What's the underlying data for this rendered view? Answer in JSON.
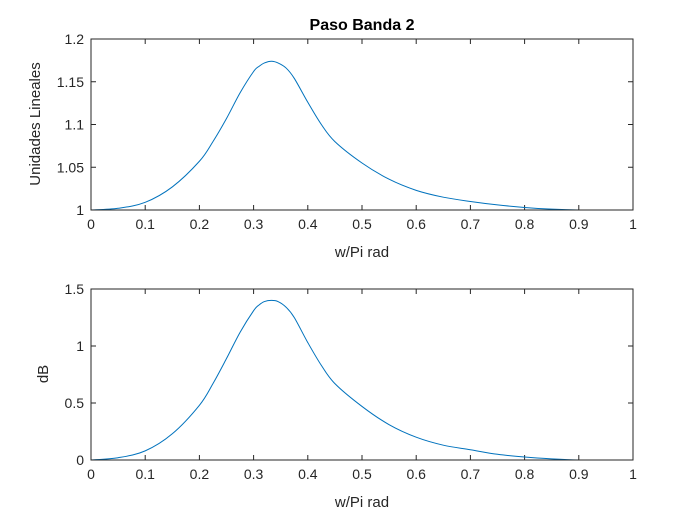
{
  "colors": {
    "series": "#0072BD",
    "axes": "#262626",
    "background": "#ffffff"
  },
  "chart_data": [
    {
      "type": "line",
      "title": "Paso Banda 2",
      "xlabel": "w/Pi rad",
      "ylabel": "Unidades Lineales",
      "xlim": [
        0,
        1
      ],
      "ylim": [
        1,
        1.2
      ],
      "xticks": [
        0,
        0.1,
        0.2,
        0.3,
        0.4,
        0.5,
        0.6,
        0.7,
        0.8,
        0.9,
        1
      ],
      "xtick_labels": [
        "0",
        "0.1",
        "0.2",
        "0.3",
        "0.4",
        "0.5",
        "0.6",
        "0.7",
        "0.8",
        "0.9",
        "1"
      ],
      "yticks": [
        1,
        1.05,
        1.1,
        1.15,
        1.2
      ],
      "ytick_labels": [
        "1",
        "1.05",
        "1.1",
        "1.15",
        "1.2"
      ],
      "grid": false,
      "series": [
        {
          "x": [
            0,
            0.05,
            0.1,
            0.15,
            0.2,
            0.225,
            0.25,
            0.275,
            0.3,
            0.31,
            0.32,
            0.333,
            0.345,
            0.36,
            0.375,
            0.4,
            0.425,
            0.45,
            0.5,
            0.55,
            0.6,
            0.65,
            0.7,
            0.75,
            0.8,
            0.85,
            0.9,
            0.95,
            1
          ],
          "y": [
            1.0,
            1.002,
            1.009,
            1.027,
            1.057,
            1.08,
            1.107,
            1.137,
            1.162,
            1.168,
            1.172,
            1.174,
            1.172,
            1.166,
            1.154,
            1.126,
            1.1,
            1.08,
            1.055,
            1.036,
            1.023,
            1.015,
            1.01,
            1.006,
            1.003,
            1.001,
            1.0,
            1.0,
            1.0
          ]
        }
      ]
    },
    {
      "type": "line",
      "title": "",
      "xlabel": "w/Pi rad",
      "ylabel": "dB",
      "xlim": [
        0,
        1
      ],
      "ylim": [
        0,
        1.5
      ],
      "xticks": [
        0,
        0.1,
        0.2,
        0.3,
        0.4,
        0.5,
        0.6,
        0.7,
        0.8,
        0.9,
        1
      ],
      "xtick_labels": [
        "0",
        "0.1",
        "0.2",
        "0.3",
        "0.4",
        "0.5",
        "0.6",
        "0.7",
        "0.8",
        "0.9",
        "1"
      ],
      "yticks": [
        0,
        0.5,
        1,
        1.5
      ],
      "ytick_labels": [
        "0",
        "0.5",
        "1",
        "1.5"
      ],
      "grid": false,
      "series": [
        {
          "x": [
            0,
            0.05,
            0.1,
            0.15,
            0.2,
            0.225,
            0.25,
            0.275,
            0.3,
            0.31,
            0.32,
            0.333,
            0.345,
            0.36,
            0.375,
            0.4,
            0.425,
            0.45,
            0.5,
            0.55,
            0.6,
            0.65,
            0.7,
            0.75,
            0.8,
            0.85,
            0.9,
            0.95,
            1
          ],
          "y": [
            0.0,
            0.02,
            0.08,
            0.23,
            0.48,
            0.67,
            0.89,
            1.12,
            1.31,
            1.36,
            1.39,
            1.4,
            1.39,
            1.34,
            1.25,
            1.03,
            0.83,
            0.67,
            0.47,
            0.31,
            0.2,
            0.13,
            0.09,
            0.05,
            0.026,
            0.01,
            0.0,
            0.0,
            0.0
          ]
        }
      ]
    }
  ]
}
